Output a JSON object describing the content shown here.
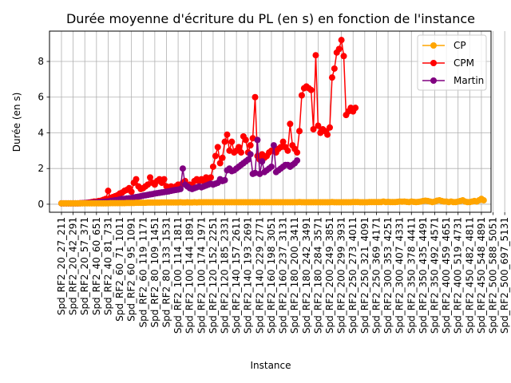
{
  "chart_data": {
    "type": "line",
    "title": "Durée moyenne d'écriture du PL (en s) en fonction de l'instance",
    "xlabel": "Instance",
    "ylabel": "Durée (en s)",
    "ylim": [
      -0.45,
      9.7
    ],
    "yticks": [
      0,
      2,
      4,
      6,
      8
    ],
    "grid": true,
    "legend_position": "top-right",
    "n_points": 180,
    "tick_labels": [
      "Spd_RF2_20_27_211",
      "Spd_RF2_20_42_291",
      "Spd_RF2_20_57_371",
      "Spd_RF2_40_60_651",
      "Spd_RF2_40_81_731",
      "Spd_RF2_60_71_1011",
      "Spd_RF2_60_95_1091",
      "Spd_RF2_60_119_1171",
      "Spd_RF2_80_109_1451",
      "Spd_RF2_80_133_1531",
      "Spd_RF2_100_114_1811",
      "Spd_RF2_100_144_1891",
      "Spd_RF2_100_174_1971",
      "Spd_RF2_120_152_2251",
      "Spd_RF2_120_185_2331",
      "Spd_RF2_140_157_2611",
      "Spd_RF2_140_193_2691",
      "Spd_RF2_140_229_2771",
      "Spd_RF2_160_198_3051",
      "Spd_RF2_160_237_3131",
      "Spd_RF2_180_200_3411",
      "Spd_RF2_180_242_3491",
      "Spd_RF2_180_284_3571",
      "Spd_RF2_200_249_3851",
      "Spd_RF2_200_299_3931",
      "Spd_RF2_250_273_4011",
      "Spd_RF2_250_321_4091",
      "Spd_RF2_250_369_4171",
      "Spd_RF2_300_353_4251",
      "Spd_RF2_300_407_4331",
      "Spd_RF2_350_378_4411",
      "Spd_RF2_350_435_4491",
      "Spd_RF2_350_492_4571",
      "Spd_RF2_400_459_4651",
      "Spd_RF2_400_519_4731",
      "Spd_RF2_450_482_4811",
      "Spd_RF2_450_548_4891",
      "Spd_RF2_500_588_5051",
      "Spd_RF2_500_697_5131"
    ],
    "tick_spacing": 5,
    "series": [
      {
        "name": "CP",
        "color": "#ffa500",
        "start": 0,
        "values": [
          0.05,
          0.05,
          0.05,
          0.05,
          0.05,
          0.05,
          0.05,
          0.05,
          0.05,
          0.05,
          0.05,
          0.05,
          0.05,
          0.05,
          0.05,
          0.05,
          0.05,
          0.05,
          0.05,
          0.05,
          0.05,
          0.06,
          0.06,
          0.06,
          0.06,
          0.06,
          0.06,
          0.06,
          0.07,
          0.07,
          0.07,
          0.07,
          0.08,
          0.08,
          0.08,
          0.08,
          0.08,
          0.09,
          0.09,
          0.09,
          0.09,
          0.09,
          0.09,
          0.1,
          0.1,
          0.1,
          0.1,
          0.1,
          0.1,
          0.1,
          0.1,
          0.11,
          0.1,
          0.1,
          0.11,
          0.1,
          0.1,
          0.11,
          0.1,
          0.11,
          0.11,
          0.11,
          0.11,
          0.11,
          0.11,
          0.11,
          0.11,
          0.11,
          0.11,
          0.11,
          0.11,
          0.11,
          0.11,
          0.11,
          0.11,
          0.11,
          0.11,
          0.11,
          0.11,
          0.11,
          0.11,
          0.11,
          0.11,
          0.11,
          0.11,
          0.11,
          0.11,
          0.11,
          0.11,
          0.11,
          0.11,
          0.11,
          0.11,
          0.11,
          0.11,
          0.11,
          0.11,
          0.11,
          0.11,
          0.11,
          0.11,
          0.11,
          0.12,
          0.11,
          0.11,
          0.11,
          0.11,
          0.11,
          0.11,
          0.11,
          0.11,
          0.11,
          0.11,
          0.11,
          0.11,
          0.11,
          0.12,
          0.11,
          0.11,
          0.11,
          0.11,
          0.11,
          0.11,
          0.11,
          0.11,
          0.12,
          0.12,
          0.12,
          0.11,
          0.11,
          0.11,
          0.11,
          0.12,
          0.12,
          0.12,
          0.12,
          0.12,
          0.12,
          0.15,
          0.12,
          0.13,
          0.12,
          0.12,
          0.12,
          0.13,
          0.15,
          0.14,
          0.15,
          0.13,
          0.12,
          0.15,
          0.13,
          0.12,
          0.13,
          0.15,
          0.18,
          0.2,
          0.18,
          0.15,
          0.12,
          0.15,
          0.2,
          0.22,
          0.18,
          0.15,
          0.15,
          0.12,
          0.15,
          0.12,
          0.12,
          0.15,
          0.18,
          0.22,
          0.15,
          0.12,
          0.12,
          0.15,
          0.18,
          0.15,
          0.22,
          0.3,
          0.22
        ]
      },
      {
        "name": "CPM",
        "color": "#ff0000",
        "start": 0,
        "values": [
          0.05,
          0.05,
          0.05,
          0.05,
          0.05,
          0.05,
          0.05,
          0.05,
          0.06,
          0.06,
          0.07,
          0.08,
          0.1,
          0.12,
          0.15,
          0.15,
          0.18,
          0.2,
          0.25,
          0.3,
          0.75,
          0.35,
          0.4,
          0.45,
          0.5,
          0.6,
          0.65,
          0.75,
          0.8,
          0.9,
          0.7,
          1.2,
          1.4,
          1.0,
          0.85,
          0.9,
          1.0,
          1.1,
          1.5,
          1.2,
          1.1,
          1.3,
          1.4,
          1.2,
          1.4,
          1.0,
          0.95,
          1.0,
          0.9,
          1.0,
          1.1,
          1.05,
          1.2,
          1.3,
          1.0,
          1.1,
          1.05,
          1.3,
          1.4,
          1.3,
          1.4,
          1.3,
          1.5,
          1.4,
          1.5,
          2.1,
          2.7,
          3.2,
          2.3,
          2.6,
          3.5,
          3.9,
          3.0,
          3.5,
          2.9,
          3.0,
          3.2,
          2.9,
          3.8,
          3.6,
          2.9,
          3.3,
          3.7,
          6.0,
          2.7,
          2.5,
          2.8,
          2.6,
          2.7,
          2.9,
          3.0,
          3.0,
          2.9,
          3.1,
          3.2,
          3.5,
          3.2,
          3.0,
          4.5,
          3.3,
          3.1,
          2.9,
          4.1,
          6.1,
          6.5,
          6.6,
          6.5,
          6.4,
          4.2,
          8.35,
          4.4,
          4.0,
          4.2,
          4.1,
          3.9,
          4.3,
          7.1,
          7.6,
          8.5,
          8.7,
          9.2,
          8.3,
          5.0,
          5.2,
          5.4,
          5.2,
          5.4
        ]
      },
      {
        "name": "Martin",
        "color": "#800080",
        "start": 0,
        "values": [
          0.05,
          0.05,
          0.05,
          0.05,
          0.05,
          0.05,
          0.05,
          0.05,
          0.05,
          0.06,
          0.06,
          0.07,
          0.07,
          0.08,
          0.09,
          0.1,
          0.11,
          0.12,
          0.13,
          0.14,
          0.16,
          0.18,
          0.2,
          0.22,
          0.24,
          0.27,
          0.3,
          0.3,
          0.32,
          0.33,
          0.35,
          0.38,
          0.4,
          0.42,
          0.45,
          0.48,
          0.5,
          0.52,
          0.55,
          0.57,
          0.6,
          0.62,
          0.64,
          0.66,
          0.68,
          0.7,
          0.72,
          0.75,
          0.78,
          0.8,
          0.82,
          0.85,
          2.0,
          1.1,
          1.0,
          0.9,
          0.85,
          0.9,
          0.95,
          1.0,
          0.95,
          1.0,
          1.05,
          1.1,
          1.15,
          1.1,
          1.15,
          1.2,
          1.4,
          1.3,
          1.35,
          1.9,
          2.0,
          1.85,
          1.9,
          2.0,
          2.1,
          2.2,
          2.3,
          2.4,
          2.5,
          2.8,
          1.7,
          1.75,
          3.6,
          1.7,
          2.4,
          1.8,
          1.9,
          2.0,
          2.1,
          3.3,
          1.8,
          1.9,
          2.0,
          2.1,
          2.2,
          2.2,
          2.1,
          2.2,
          2.3,
          2.45
        ]
      }
    ]
  }
}
